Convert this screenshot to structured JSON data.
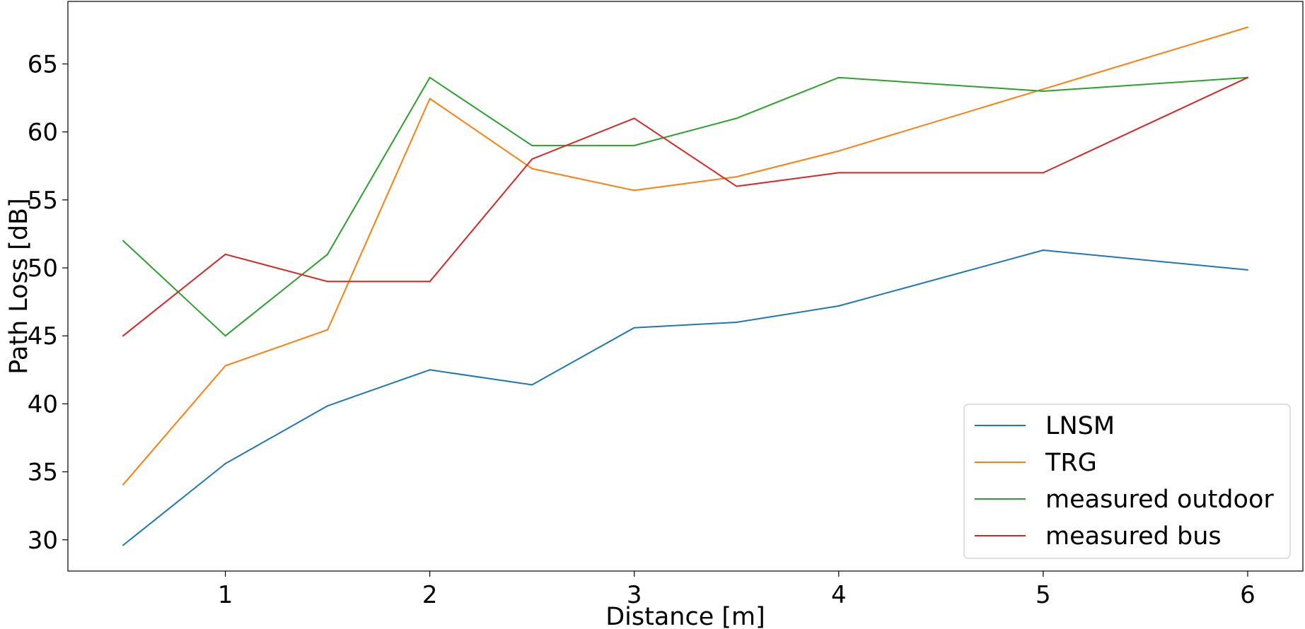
{
  "chart_data": {
    "type": "line",
    "title": "",
    "xlabel": "Distance [m]",
    "ylabel": "Path Loss [dB]",
    "xlim": [
      0.23,
      6.27
    ],
    "ylim": [
      27.7,
      69.6
    ],
    "xticks": [
      1,
      2,
      3,
      4,
      5,
      6
    ],
    "yticks": [
      30,
      35,
      40,
      45,
      50,
      55,
      60,
      65
    ],
    "grid": false,
    "legend_position": "bottom-right",
    "x": [
      0.5,
      1,
      1.5,
      2,
      2.5,
      3,
      3.5,
      4,
      5,
      6
    ],
    "series": [
      {
        "name": "LNSM",
        "color": "#1f77b4",
        "values": [
          29.6,
          35.6,
          39.85,
          42.5,
          41.4,
          45.6,
          46.0,
          47.2,
          51.3,
          49.85
        ]
      },
      {
        "name": "TRG",
        "color": "#ff7f0e",
        "values": [
          34.05,
          42.8,
          45.45,
          62.45,
          57.3,
          55.7,
          56.7,
          58.6,
          63.15,
          67.7
        ]
      },
      {
        "name": "measured outdoor",
        "color": "#2ca02c",
        "values": [
          52,
          45,
          51,
          64,
          59,
          59,
          61,
          64,
          63,
          64
        ]
      },
      {
        "name": "measured bus",
        "color": "#d62728",
        "values": [
          45,
          51,
          49,
          49,
          58,
          61,
          56,
          57,
          57,
          64
        ]
      }
    ]
  }
}
